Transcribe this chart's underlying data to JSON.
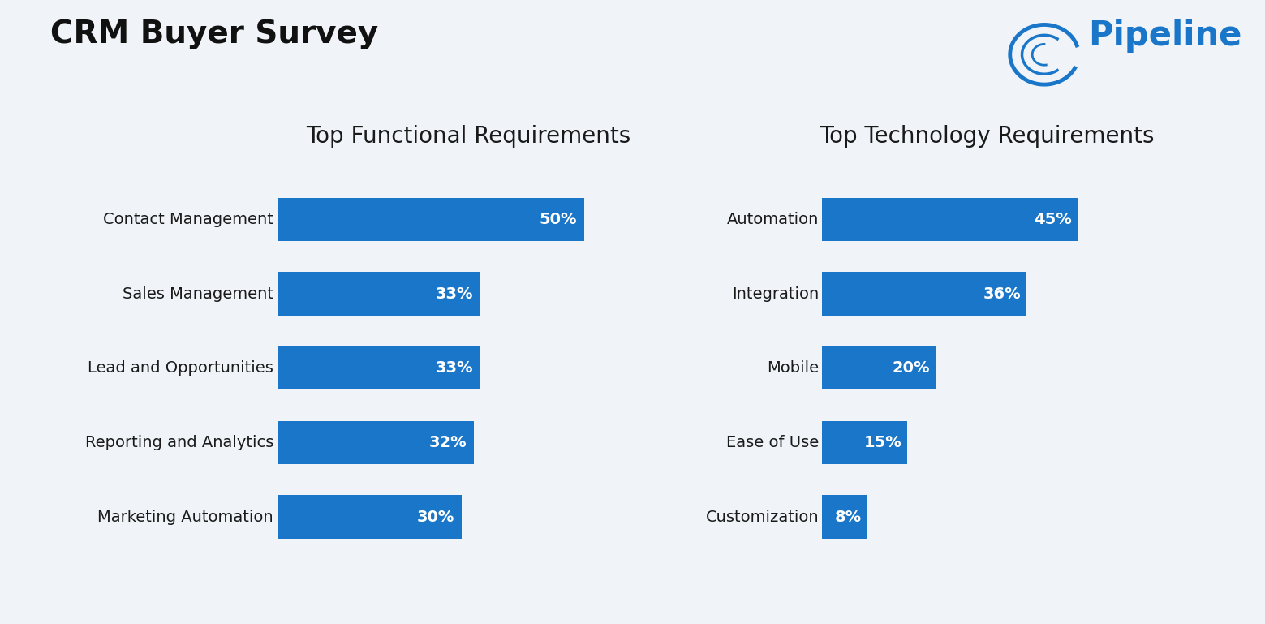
{
  "title": "CRM Buyer Survey",
  "title_fontsize": 28,
  "title_fontweight": "bold",
  "background_color": "#f0f4f8",
  "bar_color": "#1976c8",
  "left_subtitle": "Top Functional Requirements",
  "right_subtitle": "Top Technology Requirements",
  "subtitle_fontsize": 20,
  "left_categories": [
    "Contact Management",
    "Sales Management",
    "Lead and Opportunities",
    "Reporting and Analytics",
    "Marketing Automation"
  ],
  "left_values": [
    50,
    33,
    33,
    32,
    30
  ],
  "right_categories": [
    "Automation",
    "Integration",
    "Mobile",
    "Ease of Use",
    "Customization"
  ],
  "right_values": [
    45,
    36,
    20,
    15,
    8
  ],
  "left_labels": [
    "50%",
    "33%",
    "33%",
    "32%",
    "30%"
  ],
  "right_labels": [
    "45%",
    "36%",
    "20%",
    "15%",
    "8%"
  ],
  "label_fontsize": 14,
  "category_fontsize": 14,
  "xlim_left": [
    0,
    62
  ],
  "xlim_right": [
    0,
    58
  ],
  "pipeline_text": "Pipeline",
  "pipeline_color": "#1976c8",
  "pipeline_fontsize": 30,
  "text_color": "#1a1a1a"
}
